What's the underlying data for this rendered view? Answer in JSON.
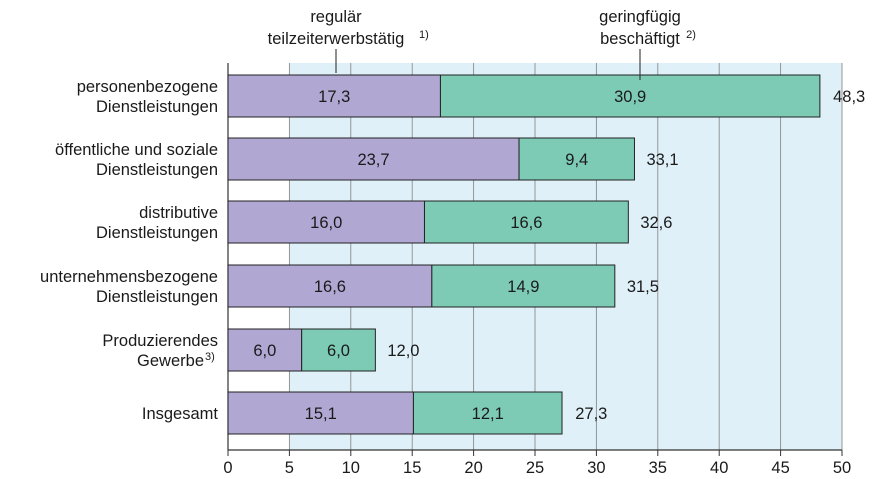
{
  "chart_data": {
    "type": "bar",
    "orientation": "horizontal",
    "stacked": true,
    "categories": [
      [
        "personenbezogene",
        "Dienstleistungen"
      ],
      [
        "öffentliche und soziale",
        "Dienstleistungen"
      ],
      [
        "distributive",
        "Dienstleistungen"
      ],
      [
        "unternehmensbezogene",
        "Dienstleistungen"
      ],
      [
        "Produzierendes",
        "Gewerbe"
      ],
      [
        "Insgesamt"
      ]
    ],
    "category_footnotes": [
      "",
      "",
      "",
      "",
      "3)",
      ""
    ],
    "series": [
      {
        "name_lines": [
          "regulär",
          "teilzeiterwerbstätig"
        ],
        "footnote": "1)",
        "values": [
          17.3,
          23.7,
          16.0,
          16.6,
          6.0,
          15.1
        ],
        "labels": [
          "17,3",
          "23,7",
          "16,0",
          "16,6",
          "6,0",
          "15,1"
        ],
        "color": "#b1a7d3"
      },
      {
        "name_lines": [
          "geringfügig",
          "beschäftigt"
        ],
        "footnote": "2)",
        "values": [
          30.9,
          9.4,
          16.6,
          14.9,
          6.0,
          12.1
        ],
        "labels": [
          "30,9",
          "9,4",
          "16,6",
          "14,9",
          "6,0",
          "12,1"
        ],
        "color": "#7ecbb5"
      }
    ],
    "totals": [
      48.3,
      33.1,
      32.6,
      31.5,
      12.0,
      27.3
    ],
    "total_labels": [
      "48,3",
      "33,1",
      "32,6",
      "31,5",
      "12,0",
      "27,3"
    ],
    "xlim": [
      0,
      50
    ],
    "xticks": [
      0,
      5,
      10,
      15,
      20,
      25,
      30,
      35,
      40,
      45,
      50
    ],
    "grid": "vertical",
    "legend": "top, with leader lines",
    "plot_background": "#dff0f8",
    "bar_outline": "#222222"
  }
}
